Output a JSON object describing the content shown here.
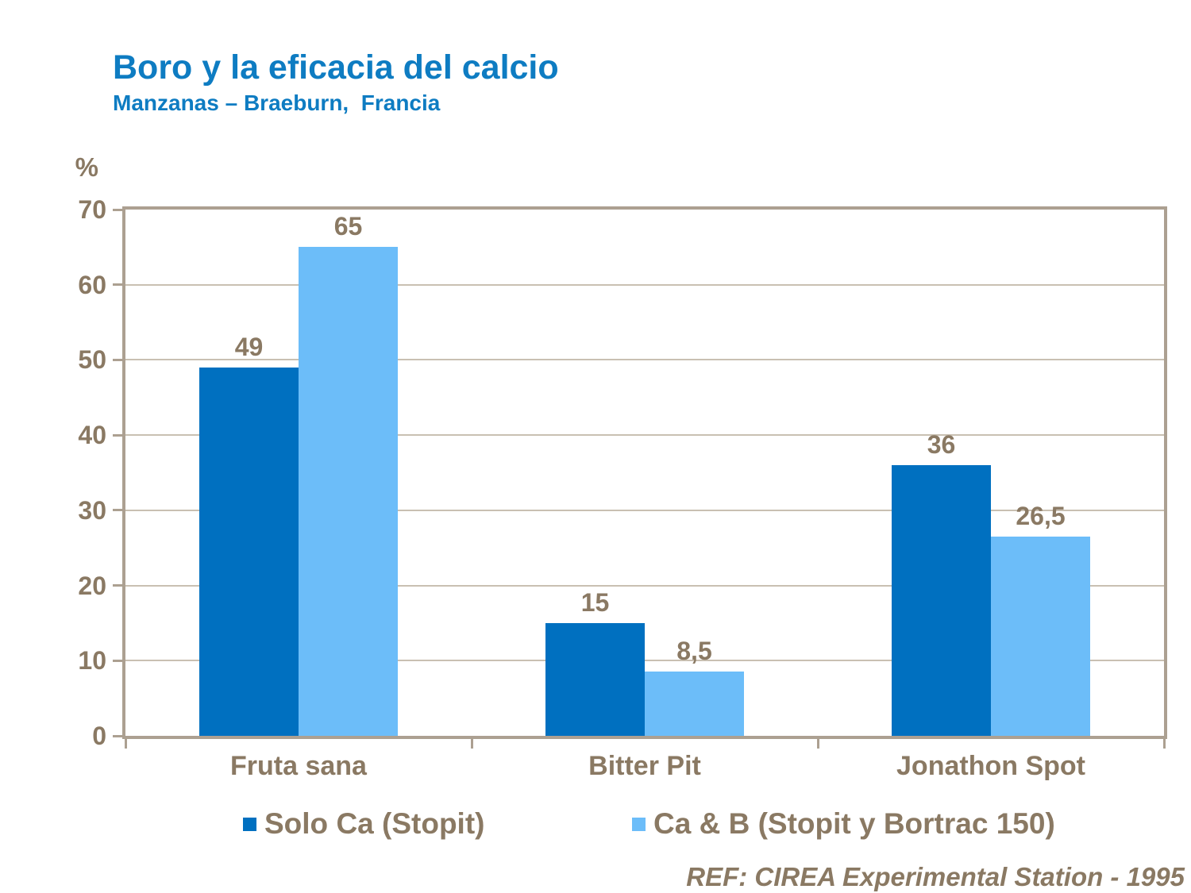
{
  "title": "Boro y la eficacia del calcio",
  "subtitle": "Manzanas – Braeburn,  Francia",
  "footer": "REF: CIREA Experimental Station - 1995",
  "colors": {
    "title_blue": "#0E7CC2",
    "series_dark_blue": "#0070C0",
    "series_light_blue": "#6CBDF9",
    "text_brown": "#8A7963",
    "gridline": "#C9C0B2",
    "axis": "#ACA091"
  },
  "chart_data": {
    "type": "bar",
    "title": "Boro y la eficacia del calcio",
    "subtitle": "Manzanas – Braeburn, Francia",
    "categories": [
      "Fruta sana",
      "Bitter Pit",
      "Jonathon Spot"
    ],
    "series": [
      {
        "name": "Solo Ca (Stopit)",
        "color": "#0070C0",
        "values": [
          49,
          15,
          36
        ],
        "value_labels": [
          "49",
          "15",
          "36"
        ]
      },
      {
        "name": "Ca & B (Stopit y Bortrac 150)",
        "color": "#6CBDF9",
        "values": [
          65,
          8.5,
          26.5
        ],
        "value_labels": [
          "65",
          "8,5",
          "26,5"
        ]
      }
    ],
    "xlabel": "",
    "ylabel": "%",
    "ylim": [
      0,
      70
    ],
    "yticks": [
      0,
      10,
      20,
      30,
      40,
      50,
      60,
      70
    ],
    "grid": true,
    "legend_position": "bottom",
    "reference": "REF: CIREA Experimental Station - 1995"
  }
}
